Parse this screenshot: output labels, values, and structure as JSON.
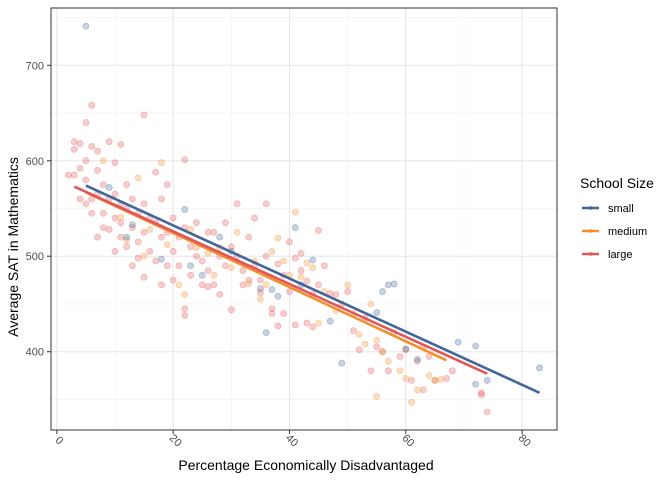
{
  "chart_data": {
    "type": "scatter",
    "xlabel": "Percentage Economically Disadvantaged",
    "ylabel": "Average SAT in Mathematics",
    "xlim": [
      -1,
      86
    ],
    "ylim": [
      318,
      760
    ],
    "x_ticks": [
      0,
      20,
      40,
      60,
      80
    ],
    "y_ticks": [
      400,
      500,
      600,
      700
    ],
    "grid": true,
    "legend": {
      "title": "School Size",
      "position": "right",
      "entries": [
        "small",
        "medium",
        "large"
      ]
    },
    "series": [
      {
        "name": "small",
        "color": "#41669A",
        "fit_line": {
          "x": [
            5,
            83
          ],
          "y": [
            574,
            357
          ]
        },
        "points": [
          [
            5,
            741
          ],
          [
            13,
            533
          ],
          [
            22,
            549
          ],
          [
            23,
            490
          ],
          [
            25,
            480
          ],
          [
            28,
            520
          ],
          [
            35,
            466
          ],
          [
            36,
            420
          ],
          [
            37,
            465
          ],
          [
            38,
            458
          ],
          [
            41,
            530
          ],
          [
            42,
            470
          ],
          [
            47,
            432
          ],
          [
            49,
            388
          ],
          [
            55,
            441
          ],
          [
            57,
            470
          ],
          [
            56,
            463
          ],
          [
            58,
            471
          ],
          [
            60,
            403
          ],
          [
            62,
            392
          ],
          [
            69,
            410
          ],
          [
            72,
            406
          ],
          [
            72,
            366
          ],
          [
            74,
            370
          ],
          [
            83,
            383
          ],
          [
            9,
            572
          ],
          [
            12,
            520
          ],
          [
            18,
            497
          ],
          [
            30,
            505
          ],
          [
            44,
            496
          ]
        ]
      },
      {
        "name": "medium",
        "color": "#F28E2B",
        "fit_line": {
          "x": [
            5,
            67
          ],
          "y": [
            567,
            391
          ]
        },
        "points": [
          [
            8,
            600
          ],
          [
            11,
            541
          ],
          [
            14,
            582
          ],
          [
            16,
            528
          ],
          [
            18,
            598
          ],
          [
            19,
            512
          ],
          [
            21,
            470
          ],
          [
            23,
            528
          ],
          [
            24,
            509
          ],
          [
            26,
            503
          ],
          [
            28,
            509
          ],
          [
            30,
            488
          ],
          [
            31,
            525
          ],
          [
            33,
            471
          ],
          [
            34,
            495
          ],
          [
            35,
            455
          ],
          [
            37,
            505
          ],
          [
            38,
            519
          ],
          [
            40,
            480
          ],
          [
            41,
            546
          ],
          [
            43,
            493
          ],
          [
            44,
            488
          ],
          [
            46,
            463
          ],
          [
            48,
            443
          ],
          [
            50,
            470
          ],
          [
            52,
            418
          ],
          [
            53,
            408
          ],
          [
            54,
            450
          ],
          [
            55,
            412
          ],
          [
            56,
            400
          ],
          [
            57,
            390
          ],
          [
            58,
            420
          ],
          [
            59,
            380
          ],
          [
            60,
            372
          ],
          [
            61,
            347
          ],
          [
            62,
            360
          ],
          [
            63,
            405
          ],
          [
            64,
            375
          ],
          [
            65,
            370
          ],
          [
            66,
            371
          ],
          [
            55,
            353
          ],
          [
            12,
            517
          ],
          [
            15,
            500
          ],
          [
            22,
            460
          ],
          [
            27,
            480
          ],
          [
            36,
            470
          ],
          [
            45,
            430
          ],
          [
            51,
            440
          ],
          [
            42,
            478
          ],
          [
            39,
            495
          ]
        ]
      },
      {
        "name": "large",
        "color": "#E15759",
        "fit_line": {
          "x": [
            3,
            74
          ],
          "y": [
            573,
            377
          ]
        },
        "points": [
          [
            3,
            585
          ],
          [
            3,
            620
          ],
          [
            3,
            612
          ],
          [
            4,
            618
          ],
          [
            4,
            560
          ],
          [
            4,
            592
          ],
          [
            5,
            640
          ],
          [
            5,
            600
          ],
          [
            5,
            580
          ],
          [
            5,
            555
          ],
          [
            6,
            658
          ],
          [
            6,
            615
          ],
          [
            6,
            560
          ],
          [
            6,
            545
          ],
          [
            7,
            610
          ],
          [
            7,
            590
          ],
          [
            7,
            565
          ],
          [
            7,
            520
          ],
          [
            8,
            575
          ],
          [
            8,
            545
          ],
          [
            8,
            530
          ],
          [
            9,
            620
          ],
          [
            9,
            560
          ],
          [
            9,
            528
          ],
          [
            10,
            598
          ],
          [
            10,
            565
          ],
          [
            10,
            540
          ],
          [
            10,
            505
          ],
          [
            11,
            617
          ],
          [
            11,
            555
          ],
          [
            11,
            535
          ],
          [
            11,
            520
          ],
          [
            12,
            575
          ],
          [
            12,
            550
          ],
          [
            12,
            510
          ],
          [
            13,
            560
          ],
          [
            13,
            530
          ],
          [
            13,
            490
          ],
          [
            14,
            545
          ],
          [
            14,
            515
          ],
          [
            14,
            498
          ],
          [
            15,
            648
          ],
          [
            15,
            555
          ],
          [
            15,
            525
          ],
          [
            15,
            478
          ],
          [
            16,
            540
          ],
          [
            16,
            505
          ],
          [
            17,
            588
          ],
          [
            17,
            535
          ],
          [
            17,
            495
          ],
          [
            18,
            560
          ],
          [
            18,
            520
          ],
          [
            18,
            470
          ],
          [
            19,
            575
          ],
          [
            19,
            525
          ],
          [
            19,
            490
          ],
          [
            20,
            540
          ],
          [
            20,
            505
          ],
          [
            20,
            475
          ],
          [
            21,
            520
          ],
          [
            21,
            490
          ],
          [
            22,
            601
          ],
          [
            22,
            530
          ],
          [
            22,
            445
          ],
          [
            22,
            438
          ],
          [
            23,
            510
          ],
          [
            23,
            480
          ],
          [
            24,
            535
          ],
          [
            24,
            500
          ],
          [
            25,
            495
          ],
          [
            25,
            470
          ],
          [
            26,
            525
          ],
          [
            26,
            485
          ],
          [
            27,
            525
          ],
          [
            27,
            470
          ],
          [
            28,
            500
          ],
          [
            28,
            460
          ],
          [
            29,
            535
          ],
          [
            29,
            490
          ],
          [
            30,
            510
          ],
          [
            30,
            444
          ],
          [
            31,
            555
          ],
          [
            31,
            500
          ],
          [
            32,
            485
          ],
          [
            32,
            470
          ],
          [
            33,
            520
          ],
          [
            33,
            475
          ],
          [
            34,
            540
          ],
          [
            34,
            490
          ],
          [
            35,
            462
          ],
          [
            35,
            475
          ],
          [
            36,
            555
          ],
          [
            36,
            500
          ],
          [
            37,
            445
          ],
          [
            37,
            440
          ],
          [
            38,
            492
          ],
          [
            38,
            427
          ],
          [
            39,
            480
          ],
          [
            39,
            440
          ],
          [
            40,
            515
          ],
          [
            40,
            463
          ],
          [
            41,
            498
          ],
          [
            41,
            428
          ],
          [
            42,
            503
          ],
          [
            42,
            485
          ],
          [
            43,
            474
          ],
          [
            43,
            430
          ],
          [
            44,
            460
          ],
          [
            44,
            426
          ],
          [
            45,
            527
          ],
          [
            45,
            470
          ],
          [
            46,
            490
          ],
          [
            47,
            461
          ],
          [
            48,
            460
          ],
          [
            49,
            450
          ],
          [
            50,
            463
          ],
          [
            51,
            422
          ],
          [
            52,
            402
          ],
          [
            53,
            435
          ],
          [
            54,
            380
          ],
          [
            55,
            405
          ],
          [
            56,
            400
          ],
          [
            57,
            380
          ],
          [
            59,
            395
          ],
          [
            60,
            402
          ],
          [
            61,
            370
          ],
          [
            62,
            390
          ],
          [
            63,
            360
          ],
          [
            64,
            395
          ],
          [
            65,
            370
          ],
          [
            67,
            372
          ],
          [
            68,
            380
          ],
          [
            73,
            355
          ],
          [
            74,
            337
          ],
          [
            73,
            357
          ],
          [
            26,
            468
          ],
          [
            2,
            585
          ]
        ]
      }
    ]
  }
}
